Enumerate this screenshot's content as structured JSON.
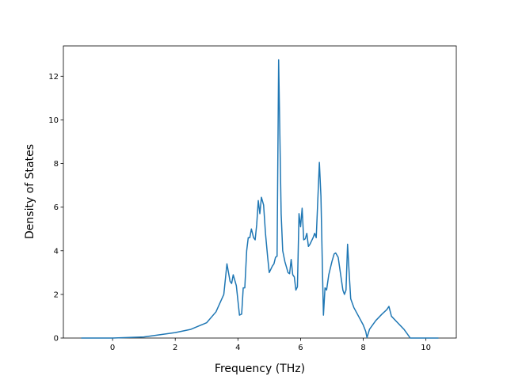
{
  "chart_data": {
    "type": "line",
    "x_label": "Frequency (THz)",
    "y_label": "Density of States",
    "xlim": [
      -1.57,
      10.97
    ],
    "ylim": [
      0,
      13.39
    ],
    "xticks": [
      0,
      2,
      4,
      6,
      8,
      10
    ],
    "yticks": [
      0,
      2,
      4,
      6,
      8,
      10,
      12
    ],
    "grid": false,
    "series": [
      {
        "name": "DOS",
        "color": "#1f77b4",
        "x": [
          -1,
          0,
          1,
          1.5,
          2,
          2.5,
          3,
          3.3,
          3.55,
          3.65,
          3.75,
          3.8,
          3.85,
          3.95,
          4.05,
          4.12,
          4.17,
          4.22,
          4.28,
          4.33,
          4.38,
          4.43,
          4.5,
          4.55,
          4.6,
          4.65,
          4.7,
          4.75,
          4.82,
          4.88,
          4.95,
          5.0,
          5.1,
          5.15,
          5.2,
          5.25,
          5.3,
          5.38,
          5.43,
          5.5,
          5.6,
          5.65,
          5.7,
          5.75,
          5.8,
          5.85,
          5.9,
          5.95,
          6.0,
          6.05,
          6.1,
          6.15,
          6.2,
          6.25,
          6.3,
          6.4,
          6.45,
          6.5,
          6.6,
          6.65,
          6.7,
          6.73,
          6.78,
          6.83,
          6.9,
          7.0,
          7.07,
          7.12,
          7.2,
          7.3,
          7.35,
          7.4,
          7.45,
          7.5,
          7.55,
          7.6,
          7.7,
          7.85,
          8.0,
          8.08,
          8.12,
          8.2,
          8.4,
          8.6,
          8.75,
          8.82,
          8.9,
          9.1,
          9.3,
          9.4,
          9.5,
          10.4
        ],
        "values": [
          0,
          0,
          0.05,
          0.15,
          0.25,
          0.4,
          0.7,
          1.2,
          2.0,
          3.4,
          2.6,
          2.5,
          2.9,
          2.4,
          1.05,
          1.1,
          2.3,
          2.3,
          4.0,
          4.6,
          4.6,
          5.0,
          4.6,
          4.5,
          5.2,
          6.3,
          5.7,
          6.45,
          6.1,
          4.8,
          3.7,
          3.0,
          3.3,
          3.4,
          3.7,
          3.75,
          12.75,
          5.7,
          4.0,
          3.5,
          3.0,
          2.95,
          3.6,
          2.9,
          2.8,
          2.2,
          2.35,
          5.7,
          5.1,
          5.95,
          4.5,
          4.55,
          4.8,
          4.2,
          4.3,
          4.6,
          4.8,
          4.6,
          8.05,
          6.5,
          3.0,
          1.05,
          2.3,
          2.2,
          2.9,
          3.5,
          3.85,
          3.9,
          3.7,
          2.7,
          2.2,
          2.0,
          2.2,
          4.3,
          3.0,
          1.8,
          1.4,
          1.0,
          0.6,
          0.3,
          0.02,
          0.4,
          0.8,
          1.1,
          1.3,
          1.45,
          1.0,
          0.7,
          0.4,
          0.2,
          0,
          0
        ]
      }
    ]
  }
}
